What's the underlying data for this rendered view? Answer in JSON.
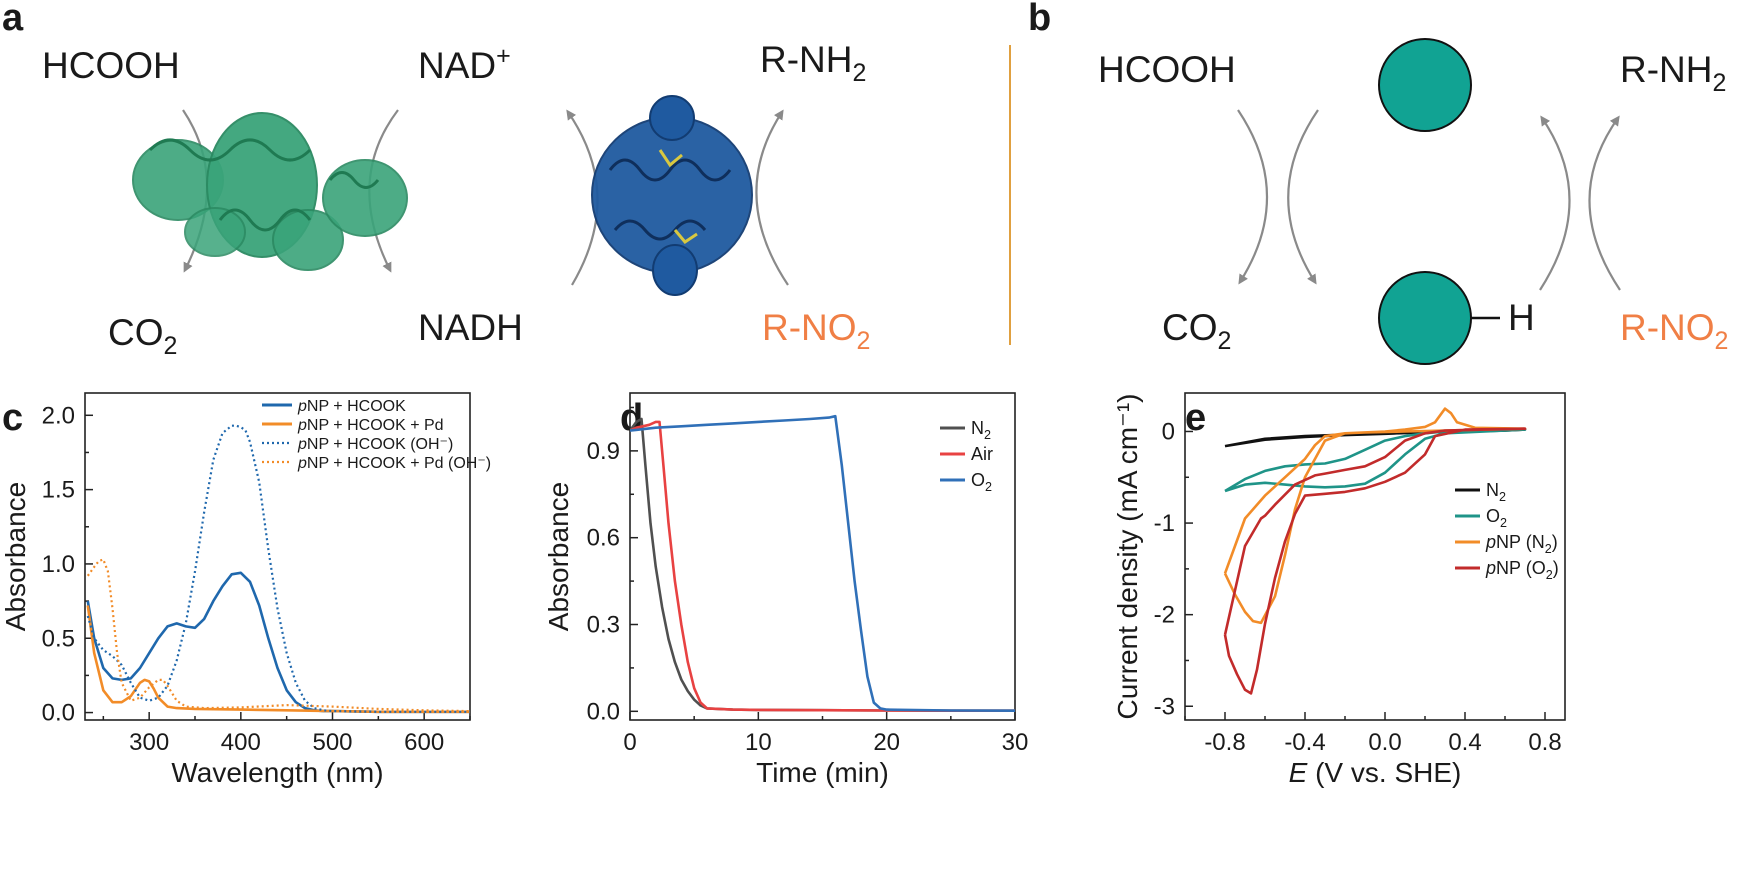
{
  "panels": {
    "a": {
      "label": "a",
      "hcooh": "HCOOH",
      "co2": "CO",
      "co2_sub": "2",
      "nad": "NAD",
      "nad_sup": "+",
      "nadh": "NADH",
      "rnh2": "R-NH",
      "rnh2_sub": "2",
      "rno2": "R-NO",
      "rno2_sub": "2",
      "enzyme1_color": "#3aa47a",
      "enzyme2_color": "#1f5aa0"
    },
    "b": {
      "label": "b",
      "hcooh": "HCOOH",
      "co2": "CO",
      "co2_sub": "2",
      "rnh2": "R-NH",
      "rnh2_sub": "2",
      "rno2": "R-NO",
      "rno2_sub": "2",
      "h": "H",
      "particle_color": "#11a393"
    },
    "divider_color": "#e0a040",
    "arrow_color": "#8a8a8a",
    "accent_text_color": "#f07f45"
  },
  "chart_data": [
    {
      "panel": "c",
      "type": "line",
      "xlabel": "Wavelength (nm)",
      "ylabel": "Absorbance",
      "xlim": [
        230,
        650
      ],
      "ylim": [
        -0.05,
        2.15
      ],
      "xticks": [
        300,
        400,
        500,
        600
      ],
      "yticks": [
        0.0,
        0.5,
        1.0,
        1.5,
        2.0
      ],
      "ytick_labels": [
        "0.0",
        "0.5",
        "1.0",
        "1.5",
        "2.0"
      ],
      "legend_position": "top-right",
      "series": [
        {
          "name": "NP + HCOOK",
          "name_prefix": "p",
          "color": "#1f68ad",
          "dash": "solid",
          "x": [
            233,
            240,
            250,
            260,
            270,
            280,
            290,
            300,
            310,
            320,
            330,
            340,
            350,
            360,
            370,
            380,
            390,
            400,
            410,
            420,
            430,
            440,
            450,
            460,
            470,
            480,
            490,
            500,
            550,
            600,
            650
          ],
          "y": [
            0.75,
            0.5,
            0.3,
            0.23,
            0.22,
            0.23,
            0.3,
            0.4,
            0.5,
            0.58,
            0.6,
            0.58,
            0.57,
            0.63,
            0.75,
            0.85,
            0.93,
            0.94,
            0.88,
            0.72,
            0.5,
            0.3,
            0.15,
            0.07,
            0.03,
            0.015,
            0.01,
            0.01,
            0.005,
            0.005,
            0.005
          ]
        },
        {
          "name": "NP + HCOOK + Pd",
          "name_prefix": "p",
          "color": "#f28c28",
          "dash": "solid",
          "x": [
            233,
            240,
            250,
            260,
            270,
            280,
            290,
            295,
            300,
            305,
            310,
            320,
            330,
            350,
            400,
            450,
            500,
            550,
            600,
            650
          ],
          "y": [
            0.72,
            0.4,
            0.15,
            0.07,
            0.07,
            0.11,
            0.2,
            0.22,
            0.21,
            0.16,
            0.1,
            0.04,
            0.03,
            0.025,
            0.02,
            0.015,
            0.01,
            0.005,
            0.005,
            0.005
          ]
        },
        {
          "name": "NP + HCOOK (OH⁻)",
          "name_prefix": "p",
          "color": "#1f68ad",
          "dash": "dotted",
          "x": [
            233,
            240,
            250,
            260,
            270,
            280,
            290,
            300,
            310,
            320,
            330,
            340,
            350,
            360,
            370,
            380,
            390,
            395,
            400,
            405,
            410,
            420,
            430,
            440,
            450,
            460,
            470,
            480,
            490,
            500,
            550,
            600,
            650
          ],
          "y": [
            0.65,
            0.5,
            0.42,
            0.38,
            0.32,
            0.2,
            0.1,
            0.08,
            0.1,
            0.18,
            0.35,
            0.6,
            0.95,
            1.35,
            1.7,
            1.88,
            1.93,
            1.93,
            1.92,
            1.9,
            1.82,
            1.55,
            1.1,
            0.7,
            0.4,
            0.2,
            0.08,
            0.03,
            0.015,
            0.01,
            0.005,
            0.005,
            0.005
          ]
        },
        {
          "name": "NP + HCOOK + Pd (OH⁻)",
          "name_prefix": "p",
          "color": "#f28c28",
          "dash": "dotted",
          "x": [
            233,
            240,
            245,
            250,
            255,
            260,
            265,
            270,
            280,
            290,
            300,
            310,
            315,
            320,
            330,
            340,
            360,
            400,
            450,
            500,
            550,
            600,
            650
          ],
          "y": [
            0.92,
            0.98,
            1.02,
            1.03,
            0.95,
            0.7,
            0.4,
            0.2,
            0.08,
            0.1,
            0.17,
            0.22,
            0.22,
            0.18,
            0.08,
            0.04,
            0.03,
            0.035,
            0.05,
            0.04,
            0.025,
            0.015,
            0.01
          ]
        }
      ]
    },
    {
      "panel": "d",
      "type": "line",
      "xlabel": "Time (min)",
      "ylabel": "Absorbance",
      "xlim": [
        0,
        30
      ],
      "ylim": [
        -0.03,
        1.1
      ],
      "xticks": [
        0,
        10,
        20,
        30
      ],
      "yticks": [
        0.0,
        0.3,
        0.6,
        0.9
      ],
      "ytick_labels": [
        "0.0",
        "0.3",
        "0.6",
        "0.9"
      ],
      "legend_position": "top-right",
      "series": [
        {
          "name": "N",
          "name_sub": "2",
          "color": "#505050",
          "x": [
            0,
            0.5,
            0.9,
            1.2,
            1.6,
            2.0,
            2.5,
            3.0,
            3.5,
            4.0,
            4.5,
            5.0,
            5.5,
            6.0,
            8,
            10,
            15,
            20,
            25,
            30
          ],
          "y": [
            0.97,
            1.0,
            1.01,
            0.85,
            0.65,
            0.5,
            0.36,
            0.25,
            0.17,
            0.11,
            0.07,
            0.04,
            0.02,
            0.01,
            0.006,
            0.005,
            0.004,
            0.003,
            0.002,
            0.002
          ]
        },
        {
          "name": "Air",
          "color": "#e84242",
          "x": [
            0,
            0.5,
            1.0,
            1.5,
            2.0,
            2.3,
            2.6,
            3.0,
            3.5,
            4.0,
            4.5,
            5.0,
            5.5,
            6.0,
            8,
            10,
            15,
            20,
            25,
            30
          ],
          "y": [
            0.97,
            0.98,
            0.985,
            0.99,
            1.0,
            1.0,
            0.85,
            0.65,
            0.45,
            0.3,
            0.17,
            0.08,
            0.03,
            0.01,
            0.006,
            0.005,
            0.004,
            0.003,
            0.002,
            0.002
          ]
        },
        {
          "name": "O",
          "name_sub": "2",
          "color": "#3070b8",
          "x": [
            0,
            2,
            4,
            6,
            8,
            10,
            12,
            14,
            15.5,
            16.0,
            16.5,
            17.0,
            17.5,
            18.0,
            18.5,
            19.0,
            19.5,
            20,
            25,
            30
          ],
          "y": [
            0.97,
            0.98,
            0.985,
            0.99,
            0.995,
            1.0,
            1.005,
            1.01,
            1.015,
            1.02,
            0.85,
            0.65,
            0.45,
            0.28,
            0.12,
            0.03,
            0.01,
            0.006,
            0.003,
            0.002
          ]
        }
      ]
    },
    {
      "panel": "e",
      "type": "line",
      "xlabel": "(V vs. SHE)",
      "xlabel_italic": "E",
      "ylabel": "Current density (mA cm⁻¹)",
      "xlim": [
        -1.0,
        0.9
      ],
      "ylim": [
        -3.15,
        0.42
      ],
      "xticks": [
        -0.8,
        -0.4,
        0.0,
        0.4,
        0.8
      ],
      "xtick_labels": [
        "-0.8",
        "-0.4",
        "0.0",
        "0.4",
        "0.8"
      ],
      "yticks": [
        -3,
        -2,
        -1,
        0
      ],
      "ytick_labels": [
        "-3",
        "-2",
        "-1",
        "0"
      ],
      "legend_position": "right",
      "series": [
        {
          "name": "N",
          "name_sub": "2",
          "color": "#111111",
          "x": [
            -0.8,
            -0.6,
            -0.4,
            -0.2,
            0.0,
            0.2,
            0.4,
            0.6,
            0.7,
            0.6,
            0.4,
            0.2,
            0.0,
            -0.2,
            -0.4,
            -0.6,
            -0.8
          ],
          "y": [
            -0.16,
            -0.09,
            -0.06,
            -0.04,
            -0.025,
            -0.01,
            0.0,
            0.01,
            0.02,
            0.01,
            0.0,
            -0.01,
            -0.02,
            -0.035,
            -0.05,
            -0.08,
            -0.16
          ]
        },
        {
          "name": "O",
          "name_sub": "2",
          "color": "#1f9488",
          "x": [
            -0.8,
            -0.7,
            -0.6,
            -0.5,
            -0.4,
            -0.3,
            -0.2,
            -0.1,
            0.0,
            0.1,
            0.2,
            0.3,
            0.5,
            0.7,
            0.5,
            0.3,
            0.2,
            0.1,
            0.0,
            -0.1,
            -0.2,
            -0.3,
            -0.4,
            -0.5,
            -0.6,
            -0.7,
            -0.8
          ],
          "y": [
            -0.65,
            -0.52,
            -0.43,
            -0.38,
            -0.36,
            -0.35,
            -0.3,
            -0.2,
            -0.1,
            -0.05,
            -0.02,
            0.0,
            0.01,
            0.02,
            0.0,
            -0.02,
            -0.08,
            -0.25,
            -0.45,
            -0.57,
            -0.6,
            -0.61,
            -0.6,
            -0.58,
            -0.56,
            -0.58,
            -0.65
          ]
        },
        {
          "name": "NP (N",
          "name_prefix": "p",
          "name_sub": "2",
          "name_suffix": ")",
          "color": "#f28c28",
          "x": [
            -0.8,
            -0.75,
            -0.7,
            -0.66,
            -0.62,
            -0.55,
            -0.5,
            -0.45,
            -0.4,
            -0.3,
            -0.2,
            -0.1,
            0.0,
            0.1,
            0.2,
            0.25,
            0.3,
            0.33,
            0.36,
            0.45,
            0.7,
            0.5,
            0.3,
            0.1,
            -0.1,
            -0.2,
            -0.3,
            -0.35,
            -0.4,
            -0.5,
            -0.6,
            -0.7,
            -0.75,
            -0.8
          ],
          "y": [
            -1.55,
            -1.78,
            -1.97,
            -2.07,
            -2.09,
            -1.8,
            -1.35,
            -0.85,
            -0.5,
            -0.1,
            -0.02,
            -0.01,
            0.0,
            0.02,
            0.05,
            0.1,
            0.25,
            0.2,
            0.1,
            0.04,
            0.03,
            0.02,
            0.01,
            0.0,
            -0.01,
            -0.02,
            -0.05,
            -0.15,
            -0.3,
            -0.5,
            -0.7,
            -0.95,
            -1.25,
            -1.55
          ]
        },
        {
          "name": "NP (O",
          "name_prefix": "p",
          "name_sub": "2",
          "name_suffix": ")",
          "color": "#c22b2b",
          "x": [
            -0.8,
            -0.78,
            -0.74,
            -0.7,
            -0.67,
            -0.64,
            -0.6,
            -0.55,
            -0.5,
            -0.45,
            -0.4,
            -0.3,
            -0.2,
            -0.1,
            0.0,
            0.1,
            0.2,
            0.25,
            0.4,
            0.7,
            0.5,
            0.3,
            0.2,
            0.1,
            0.0,
            -0.1,
            -0.2,
            -0.3,
            -0.35,
            -0.45,
            -0.55,
            -0.6,
            -0.62,
            -0.7,
            -0.8
          ],
          "y": [
            -2.22,
            -2.45,
            -2.65,
            -2.82,
            -2.86,
            -2.6,
            -2.1,
            -1.6,
            -1.2,
            -0.9,
            -0.7,
            -0.68,
            -0.66,
            -0.62,
            -0.55,
            -0.45,
            -0.25,
            -0.05,
            0.02,
            0.03,
            0.02,
            0.01,
            -0.02,
            -0.1,
            -0.28,
            -0.38,
            -0.42,
            -0.46,
            -0.48,
            -0.58,
            -0.8,
            -0.92,
            -0.95,
            -1.25,
            -2.22
          ]
        }
      ]
    }
  ]
}
